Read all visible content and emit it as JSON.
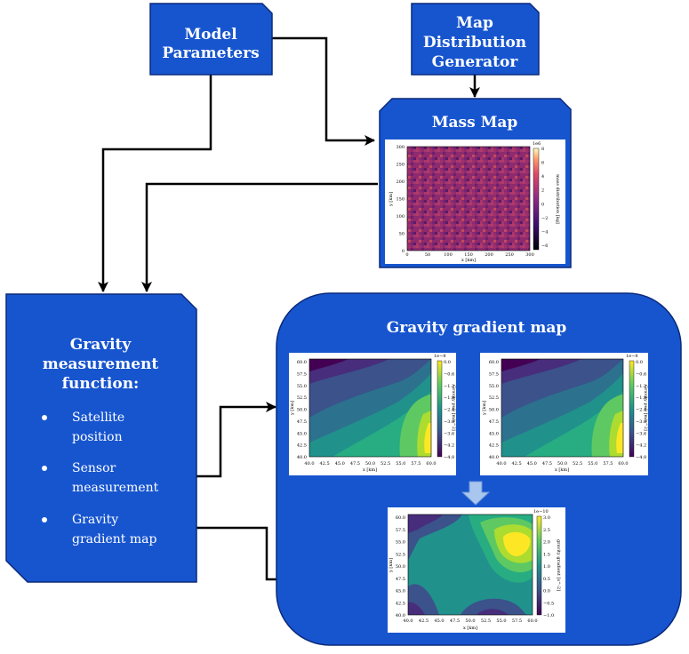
{
  "colors": {
    "box_fill": "#1755cf",
    "box_stroke": "#0a2a7a",
    "arrow": "#000000",
    "text": "#ffffff",
    "down_arrow_fill": "#a9c7ee"
  },
  "nodes": {
    "model_parameters": {
      "label_lines": [
        "Model",
        "Parameters"
      ]
    },
    "map_distribution_generator": {
      "label_lines": [
        "Map",
        "Distribution",
        "Generator"
      ]
    },
    "mass_map": {
      "title": "Mass Map",
      "plot": {
        "xlabel": "x [km]",
        "ylabel": "y [km]",
        "xticks": [
          "0",
          "50",
          "100",
          "150",
          "200",
          "250",
          "300"
        ],
        "yticks": [
          "0",
          "50",
          "100",
          "150",
          "200",
          "250",
          "300"
        ],
        "colorbar_label": "mass distribution [kg]",
        "colorbar_exponent": "1e6",
        "colorbar_ticks": [
          "8",
          "6",
          "4",
          "2",
          "0",
          "−2",
          "−4",
          "−6"
        ]
      }
    },
    "gravity_measurement_function": {
      "title_lines": [
        "Gravity",
        "measurement",
        "function:"
      ],
      "bullets": [
        {
          "lines": [
            "Satellite",
            "position"
          ]
        },
        {
          "lines": [
            "Sensor",
            "measurement"
          ]
        },
        {
          "lines": [
            "Gravity",
            "gradient map"
          ]
        }
      ]
    },
    "gravity_gradient_map": {
      "title": "Gravity gradient map",
      "plot_left": {
        "xlabel": "x [km]",
        "ylabel": "y [km]",
        "xticks": [
          "40.0",
          "42.5",
          "45.0",
          "47.5",
          "50.0",
          "52.5",
          "55.0",
          "57.5",
          "60.0"
        ],
        "yticks": [
          "60.0",
          "57.5",
          "55.0",
          "52.5",
          "50.0",
          "47.5",
          "45.0",
          "42.5",
          "40.0"
        ],
        "colorbar_label": "Gravity pull [m/s^2]",
        "colorbar_exponent": "1e−8",
        "colorbar_ticks": [
          "0.0",
          "−0.6",
          "−1.2",
          "−1.8",
          "−2.4",
          "−3.0",
          "−3.6",
          "−4.2",
          "−4.8"
        ]
      },
      "plot_right": {
        "xlabel": "x [km]",
        "ylabel": "y [km]",
        "xticks": [
          "40.0",
          "42.5",
          "45.0",
          "47.5",
          "50.0",
          "52.5",
          "55.0",
          "57.5",
          "60.0"
        ],
        "yticks": [
          "60.0",
          "57.5",
          "55.0",
          "52.5",
          "50.0",
          "47.5",
          "45.0",
          "42.5",
          "40.0"
        ],
        "colorbar_label": "Gravity pull [m/s^2]",
        "colorbar_exponent": "1e−8",
        "colorbar_ticks": [
          "0.0",
          "−0.6",
          "−1.2",
          "−1.8",
          "−2.4",
          "−3.0",
          "−3.6",
          "−4.2",
          "−4.8"
        ]
      },
      "plot_bottom": {
        "xlabel": "x [km]",
        "ylabel": "y [km]",
        "xticks": [
          "40.0",
          "42.5",
          "45.0",
          "47.5",
          "50.0",
          "52.5",
          "55.0",
          "57.5",
          "60.0"
        ],
        "yticks": [
          "60.0",
          "57.5",
          "55.0",
          "52.5",
          "50.0",
          "47.5",
          "45.0",
          "42.5",
          "40.0"
        ],
        "colorbar_label": "gravity gradient [s^-2]",
        "colorbar_exponent": "1e−10",
        "colorbar_ticks": [
          "3.0",
          "2.5",
          "2.0",
          "1.5",
          "1.0",
          "0.5",
          "0.0",
          "−0.5",
          "−1.0"
        ]
      }
    }
  }
}
